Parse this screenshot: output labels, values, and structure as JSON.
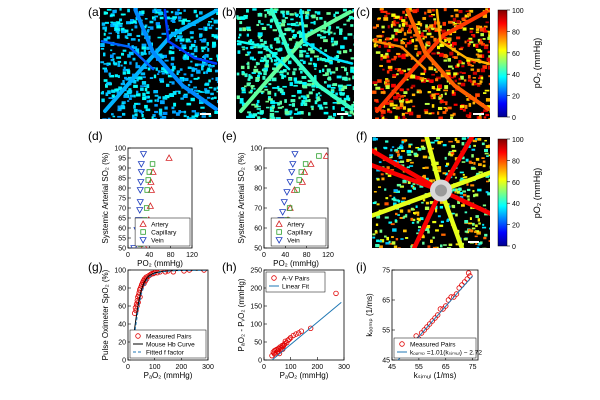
{
  "panel_letters": [
    "(a)",
    "(b)",
    "(c)",
    "(d)",
    "(e)",
    "(f)",
    "(g)",
    "(h)",
    "(i)"
  ],
  "colorbar": {
    "label": "pO₂ (mmHg)",
    "ticks": [
      "0",
      "20",
      "40",
      "60",
      "80",
      "100"
    ],
    "colors": [
      "#00008f",
      "#0000ff",
      "#0080ff",
      "#00ffff",
      "#80ff80",
      "#ffff00",
      "#ff8000",
      "#ff0000",
      "#800000"
    ]
  },
  "chart_data": [
    {
      "panel": "(d)",
      "type": "scatter",
      "xlabel": "PO₂ (mmHg)",
      "ylabel": "Systemic Arterial SO₂ (%)",
      "xlim": [
        0,
        120
      ],
      "ylim": [
        50,
        100
      ],
      "xticks": [
        "0",
        "40",
        "80",
        "120"
      ],
      "yticks": [
        "50",
        "55",
        "60",
        "65",
        "70",
        "75",
        "80",
        "85",
        "90",
        "95",
        "100"
      ],
      "legend_position": "bottom-right",
      "series": [
        {
          "name": "Artery",
          "marker": "triangle-up",
          "color": "#d62728",
          "points": [
            [
              77,
              95
            ],
            [
              47,
              88
            ],
            [
              43,
              83
            ],
            [
              44,
              79
            ],
            [
              42,
              71
            ],
            [
              39,
              64
            ],
            [
              35,
              60
            ],
            [
              30,
              51
            ]
          ]
        },
        {
          "name": "Capillary",
          "marker": "square",
          "color": "#2ca02c",
          "points": [
            [
              46,
              92
            ],
            [
              40,
              88
            ],
            [
              38,
              84
            ],
            [
              36,
              79
            ],
            [
              35,
              70
            ],
            [
              31,
              64
            ],
            [
              29,
              60
            ],
            [
              24,
              52
            ]
          ]
        },
        {
          "name": "Vein",
          "marker": "triangle-down",
          "color": "#1f3fbf",
          "points": [
            [
              29,
              97
            ],
            [
              25,
              92
            ],
            [
              25,
              88
            ],
            [
              24,
              83
            ],
            [
              23,
              79
            ],
            [
              23,
              73
            ],
            [
              22,
              69
            ],
            [
              20,
              64
            ],
            [
              17,
              59
            ],
            [
              11,
              50
            ]
          ]
        }
      ]
    },
    {
      "panel": "(e)",
      "type": "scatter",
      "xlabel": "PO₂ (mmHg)",
      "ylabel": "Systemic Arterial SO₂ (%)",
      "xlim": [
        0,
        120
      ],
      "ylim": [
        50,
        100
      ],
      "xticks": [
        "0",
        "40",
        "80",
        "120"
      ],
      "yticks": [
        "50",
        "60",
        "70",
        "80",
        "90",
        "100"
      ],
      "legend_position": "bottom-right",
      "series": [
        {
          "name": "Artery",
          "marker": "triangle-up",
          "color": "#d62728",
          "points": [
            [
              117,
              96
            ],
            [
              88,
              92
            ],
            [
              76,
              88
            ],
            [
              72,
              83
            ],
            [
              57,
              79
            ],
            [
              49,
              70
            ],
            [
              45,
              64
            ],
            [
              38,
              60
            ]
          ]
        },
        {
          "name": "Capillary",
          "marker": "square",
          "color": "#2ca02c",
          "points": [
            [
              103,
              96
            ],
            [
              78,
              92
            ],
            [
              70,
              88
            ],
            [
              66,
              84
            ],
            [
              62,
              79
            ],
            [
              48,
              70
            ],
            [
              44,
              64
            ],
            [
              38,
              60
            ]
          ]
        },
        {
          "name": "Vein",
          "marker": "triangle-down",
          "color": "#1f3fbf",
          "points": [
            [
              58,
              97
            ],
            [
              54,
              92
            ],
            [
              52,
              88
            ],
            [
              49,
              83
            ],
            [
              43,
              78
            ],
            [
              38,
              73
            ],
            [
              35,
              68
            ],
            [
              32,
              64
            ],
            [
              27,
              59
            ],
            [
              20,
              57
            ]
          ]
        }
      ]
    },
    {
      "panel": "(g)",
      "type": "scatter",
      "xlabel": "PₐO₂ (mmHg)",
      "ylabel": "Pulse Oximeter SpO₂ (%)",
      "xlim": [
        0,
        300
      ],
      "ylim": [
        0,
        100
      ],
      "xticks": [
        "0",
        "100",
        "200",
        "300"
      ],
      "yticks": [
        "0",
        "20",
        "40",
        "60",
        "80",
        "100"
      ],
      "legend_position": "bottom-right",
      "series": [
        {
          "name": "Measured Pairs",
          "marker": "circle-open",
          "color": "#e00000",
          "points": [
            [
              25,
              52
            ],
            [
              28,
              58
            ],
            [
              30,
              55
            ],
            [
              32,
              62
            ],
            [
              34,
              60
            ],
            [
              35,
              66
            ],
            [
              37,
              70
            ],
            [
              38,
              64
            ],
            [
              40,
              72
            ],
            [
              42,
              75
            ],
            [
              44,
              78
            ],
            [
              45,
              70
            ],
            [
              47,
              80
            ],
            [
              50,
              82
            ],
            [
              52,
              84
            ],
            [
              55,
              86
            ],
            [
              58,
              88
            ],
            [
              60,
              85
            ],
            [
              62,
              90
            ],
            [
              65,
              88
            ],
            [
              68,
              92
            ],
            [
              70,
              90
            ],
            [
              75,
              93
            ],
            [
              80,
              94
            ],
            [
              85,
              95
            ],
            [
              90,
              96
            ],
            [
              95,
              96
            ],
            [
              100,
              97
            ],
            [
              110,
              97
            ],
            [
              120,
              98
            ],
            [
              140,
              98
            ],
            [
              150,
              99
            ],
            [
              170,
              98
            ],
            [
              210,
              99
            ],
            [
              230,
              100
            ],
            [
              285,
              100
            ]
          ]
        },
        {
          "name": "Mouse Hb Curve",
          "type": "line",
          "color": "#000000",
          "points": [
            [
              10,
              8
            ],
            [
              20,
              24
            ],
            [
              30,
              46
            ],
            [
              40,
              65
            ],
            [
              50,
              78
            ],
            [
              60,
              86
            ],
            [
              70,
              91
            ],
            [
              80,
              94
            ],
            [
              100,
              97
            ],
            [
              130,
              98.5
            ],
            [
              160,
              99.2
            ],
            [
              200,
              99.6
            ],
            [
              250,
              99.8
            ],
            [
              300,
              99.9
            ]
          ]
        },
        {
          "name": "Fitted f factor",
          "type": "line",
          "dash": true,
          "color": "#1f77b4",
          "points": [
            [
              10,
              6
            ],
            [
              20,
              20
            ],
            [
              30,
              40
            ],
            [
              40,
              59
            ],
            [
              50,
              73
            ],
            [
              60,
              82
            ],
            [
              70,
              88
            ],
            [
              80,
              92
            ],
            [
              100,
              96
            ],
            [
              130,
              98
            ],
            [
              160,
              99
            ],
            [
              200,
              99.5
            ],
            [
              250,
              99.7
            ],
            [
              300,
              99.8
            ]
          ]
        }
      ]
    },
    {
      "panel": "(h)",
      "type": "scatter",
      "xlabel": "PₐO₂ (mmHg)",
      "ylabel": "PₐO₂ - PᵥO₂ (mmHg)",
      "xlim": [
        0,
        300
      ],
      "ylim": [
        0,
        250
      ],
      "xticks": [
        "0",
        "100",
        "200",
        "300"
      ],
      "yticks": [
        "0",
        "50",
        "100",
        "150",
        "200",
        "250"
      ],
      "legend_position": "top-left",
      "series": [
        {
          "name": "A-V Pairs",
          "marker": "circle-open",
          "color": "#e00000",
          "points": [
            [
              30,
              12
            ],
            [
              35,
              22
            ],
            [
              38,
              18
            ],
            [
              40,
              26
            ],
            [
              42,
              15
            ],
            [
              45,
              28
            ],
            [
              48,
              20
            ],
            [
              50,
              30
            ],
            [
              52,
              24
            ],
            [
              55,
              32
            ],
            [
              58,
              18
            ],
            [
              60,
              36
            ],
            [
              62,
              28
            ],
            [
              65,
              34
            ],
            [
              68,
              40
            ],
            [
              70,
              30
            ],
            [
              72,
              38
            ],
            [
              75,
              42
            ],
            [
              78,
              45
            ],
            [
              80,
              52
            ],
            [
              85,
              48
            ],
            [
              90,
              55
            ],
            [
              95,
              58
            ],
            [
              100,
              62
            ],
            [
              110,
              68
            ],
            [
              120,
              72
            ],
            [
              130,
              75
            ],
            [
              140,
              80
            ],
            [
              175,
              88
            ],
            [
              270,
              185
            ]
          ]
        },
        {
          "name": "Linear Fit",
          "type": "line",
          "color": "#1f77b4",
          "points": [
            [
              30,
              0
            ],
            [
              290,
              160
            ]
          ]
        }
      ]
    },
    {
      "panel": "(i)",
      "type": "scatter",
      "xlabel": "kₛᵢₘᵤₗ (1/ms)",
      "ylabel": "kₒₒₘₚ (1/ms)",
      "xlim": [
        45,
        77
      ],
      "ylim": [
        45,
        75
      ],
      "xticks": [
        "45",
        "55",
        "65",
        "75"
      ],
      "yticks": [
        "45",
        "55",
        "65",
        "75"
      ],
      "legend_position": "bottom-right",
      "series": [
        {
          "name": "Measured Pairs",
          "marker": "circle-open",
          "color": "#e00000",
          "points": [
            [
              48,
              47
            ],
            [
              49,
              48
            ],
            [
              50,
              48.5
            ],
            [
              51,
              49
            ],
            [
              52,
              50
            ],
            [
              53,
              51
            ],
            [
              54,
              53
            ],
            [
              55,
              52
            ],
            [
              56,
              54
            ],
            [
              57,
              55
            ],
            [
              58,
              56
            ],
            [
              59,
              57
            ],
            [
              60,
              58
            ],
            [
              61,
              59
            ],
            [
              62,
              60
            ],
            [
              63,
              62
            ],
            [
              64,
              62
            ],
            [
              65,
              63
            ],
            [
              66,
              65
            ],
            [
              67,
              66
            ],
            [
              68,
              66
            ],
            [
              69,
              67
            ],
            [
              70,
              69
            ],
            [
              71,
              70
            ],
            [
              72,
              71
            ],
            [
              73,
              72
            ],
            [
              74,
              73
            ],
            [
              73.5,
              74
            ]
          ]
        },
        {
          "name": "kₒₒₘₚ =1.01(kₛᵢₘᵤₗ) − 2.72",
          "type": "line",
          "color": "#1f77b4",
          "points": [
            [
              46,
              43.74
            ],
            [
              75,
              73.03
            ]
          ]
        }
      ]
    }
  ]
}
